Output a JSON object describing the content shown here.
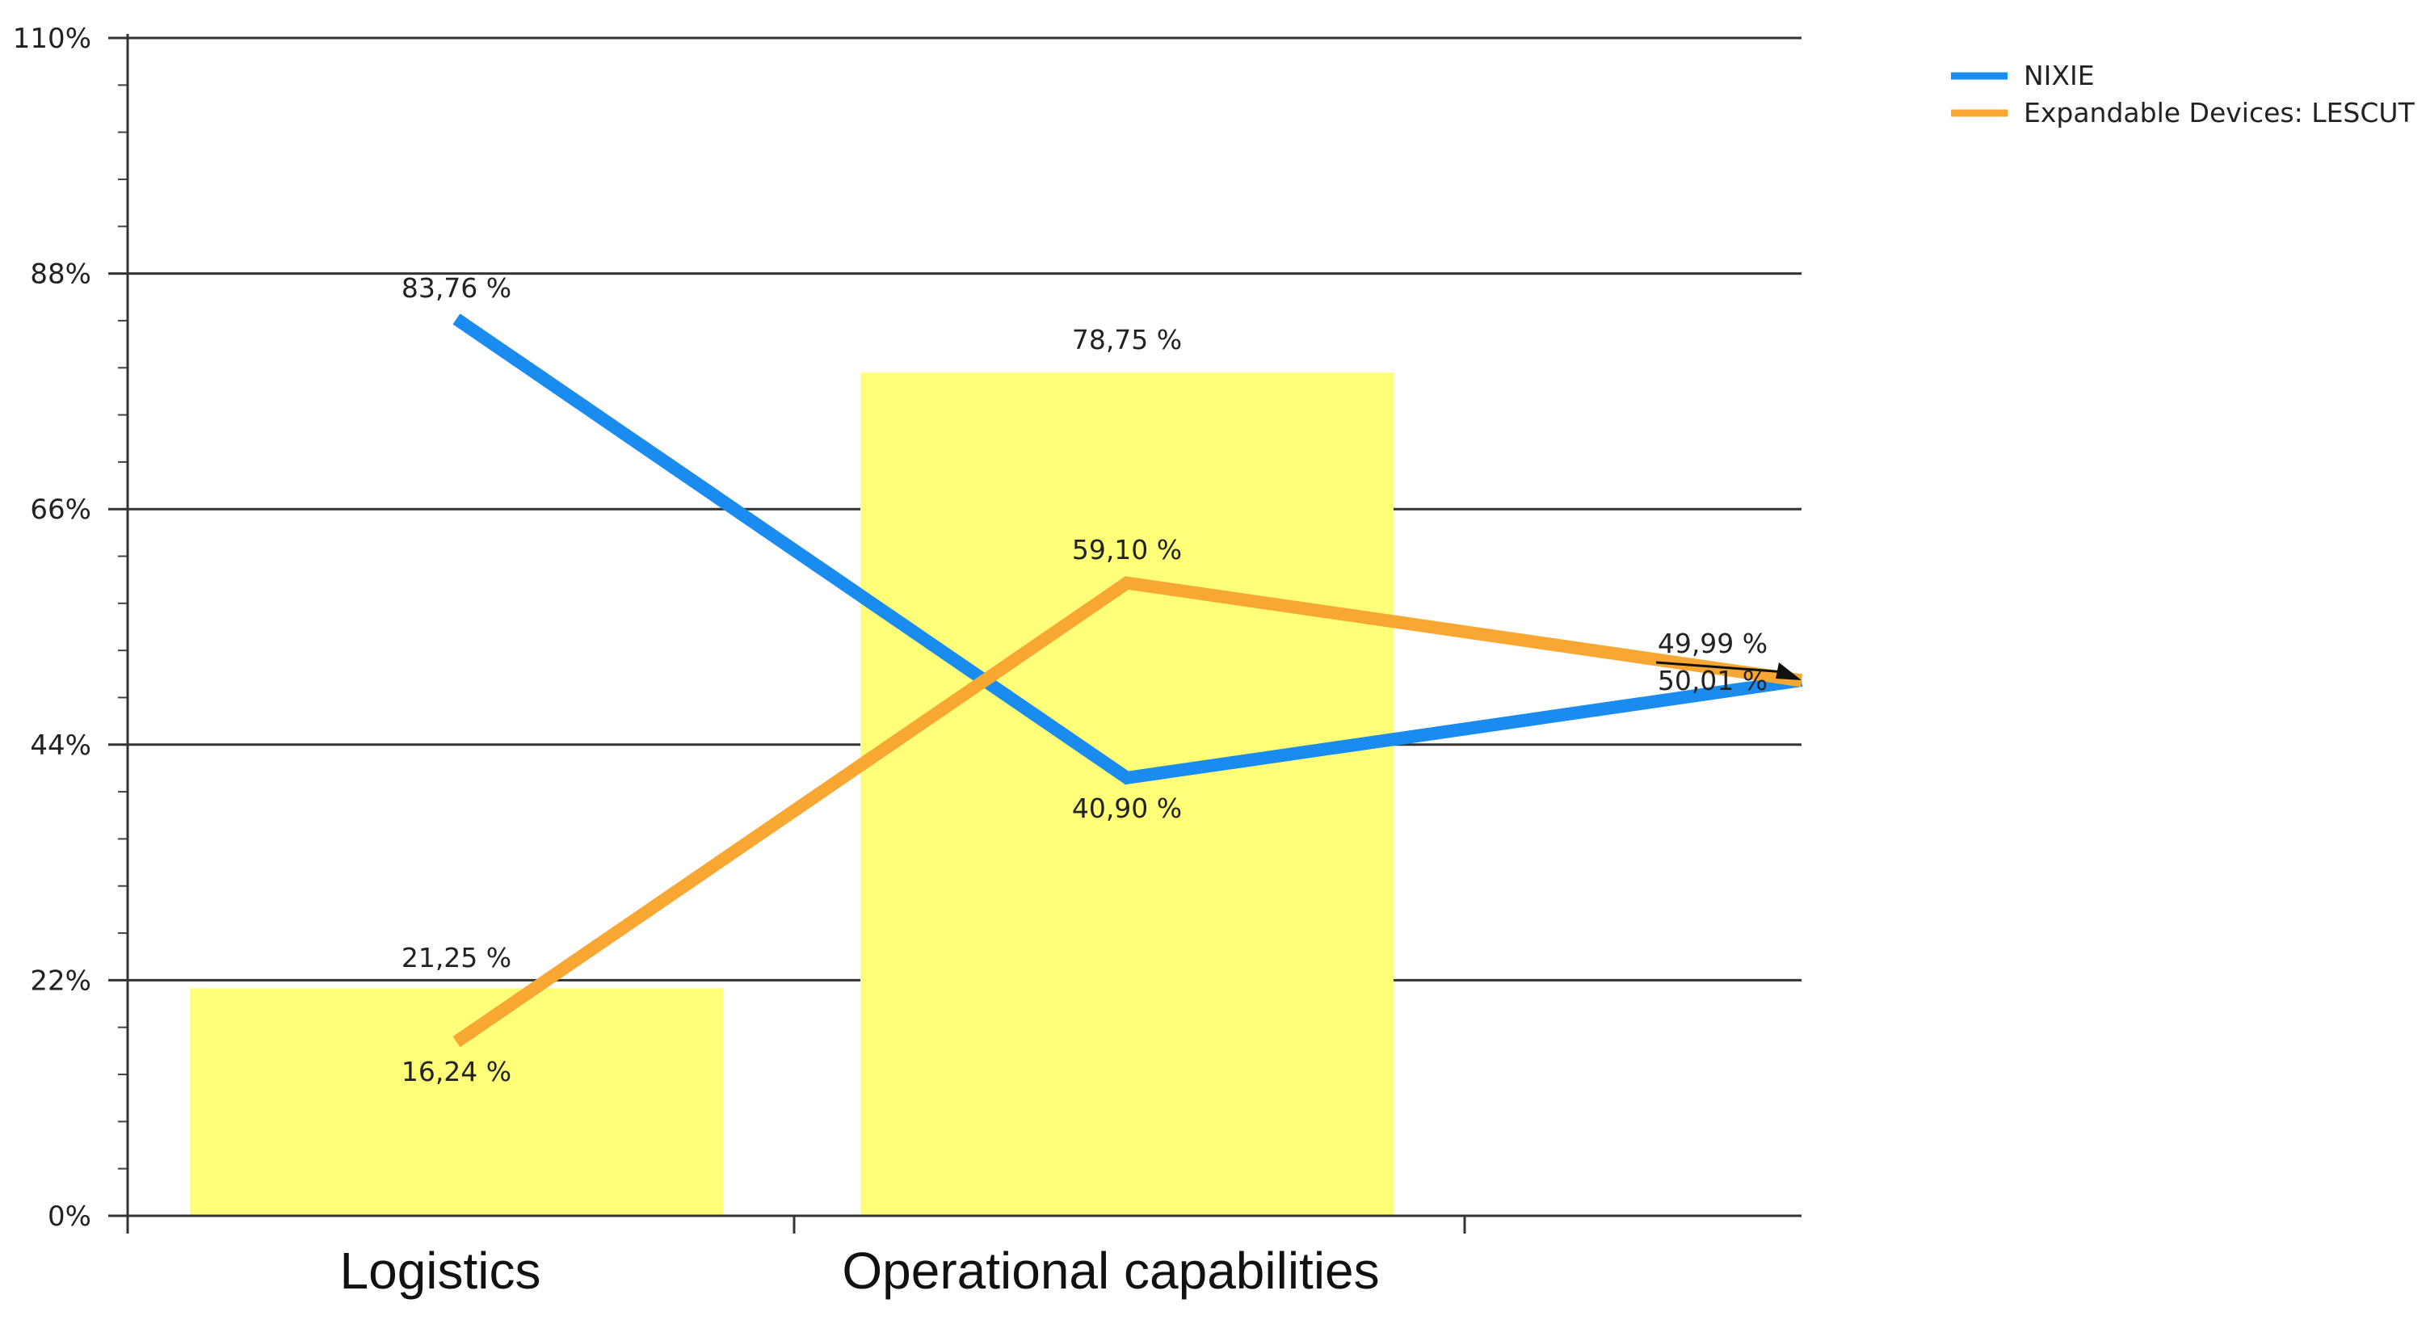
{
  "chart_data": {
    "type": "bar+line",
    "categories": [
      "Logistics",
      "Operational capabilities",
      ""
    ],
    "ylim": [
      0,
      110
    ],
    "yticks": [
      0,
      22,
      44,
      66,
      88,
      110
    ],
    "ytick_labels": [
      "0%",
      "22%",
      "44%",
      "66%",
      "88%",
      "110%"
    ],
    "grid": true,
    "legend_position": "top-right",
    "bars": {
      "values": [
        21.25,
        78.75
      ],
      "labels": [
        "21,25 %",
        "78,75 %"
      ],
      "color": "#ffff78"
    },
    "series": [
      {
        "name": "NIXIE",
        "color": "#1a8cf0",
        "values": [
          83.76,
          40.9,
          50.01
        ],
        "labels": [
          "83,76 %",
          "40,90 %",
          "50,01 %"
        ]
      },
      {
        "name": "Expandable Devices: LESCUT",
        "color": "#f8a832",
        "values": [
          16.24,
          59.1,
          49.99
        ],
        "labels": [
          "16,24 %",
          "59,10 %",
          "49,99 %"
        ]
      }
    ]
  }
}
